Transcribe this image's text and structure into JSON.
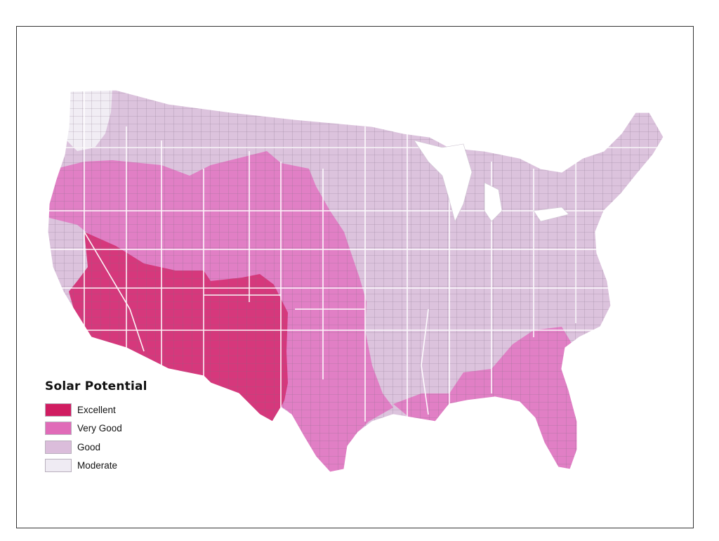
{
  "legend": {
    "title": "Solar Potential",
    "items": [
      {
        "label": "Excellent",
        "color": "#d01c61"
      },
      {
        "label": "Very Good",
        "color": "#e06bb8"
      },
      {
        "label": "Good",
        "color": "#dbbddb"
      },
      {
        "label": "Moderate",
        "color": "#efebf3"
      }
    ]
  },
  "colors": {
    "excellent": "#d6387c",
    "very_good": "#e17fc5",
    "good": "#dcc3dd",
    "moderate": "#f1edf4",
    "state_border": "#ffffff",
    "county_line": "#7d6a80",
    "frame_border": "#333333"
  },
  "map_regions": [
    {
      "name": "desert-southwest",
      "class": "Excellent"
    },
    {
      "name": "western-interior-and-plains",
      "class": "Very Good"
    },
    {
      "name": "california-coast",
      "class": "Very Good"
    },
    {
      "name": "texas-and-gulf",
      "class": "Very Good"
    },
    {
      "name": "southeast",
      "class": "Very Good"
    },
    {
      "name": "north-east-and-midwest",
      "class": "Good"
    },
    {
      "name": "pacific-northwest-coast",
      "class": "Moderate"
    }
  ]
}
